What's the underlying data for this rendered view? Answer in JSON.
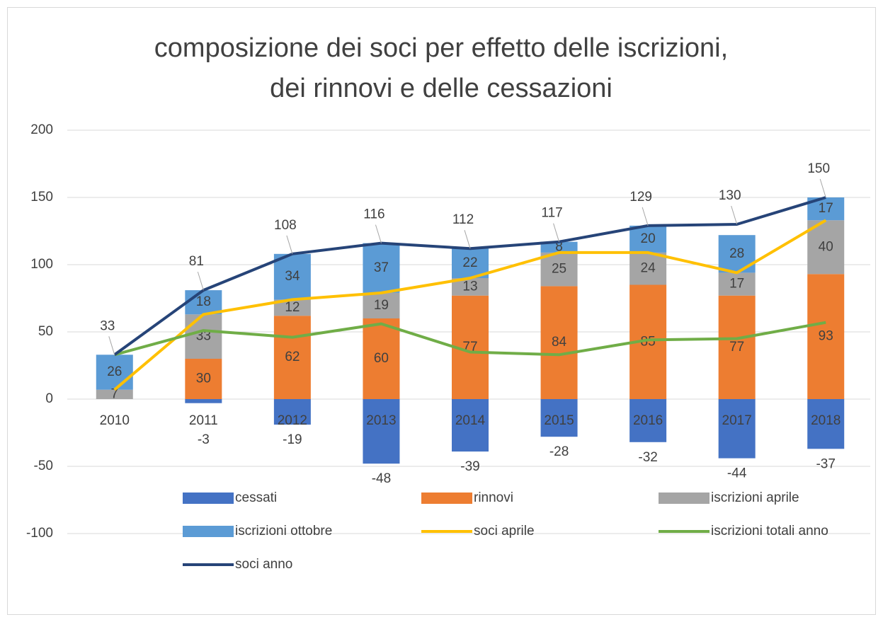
{
  "chart_data": {
    "type": "bar",
    "title": [
      "composizione dei soci per effetto delle iscrizioni,",
      "dei rinnovi e delle cessazioni"
    ],
    "categories": [
      "2010",
      "2011",
      "2012",
      "2013",
      "2014",
      "2015",
      "2016",
      "2017",
      "2018"
    ],
    "series": [
      {
        "name": "cessati",
        "type": "bar",
        "color": "#4472c4",
        "values": [
          null,
          -3,
          -19,
          -48,
          -39,
          -28,
          -32,
          -44,
          -37
        ]
      },
      {
        "name": "rinnovi",
        "type": "bar",
        "color": "#ed7d31",
        "values": [
          null,
          30,
          62,
          60,
          77,
          84,
          85,
          77,
          93
        ]
      },
      {
        "name": "iscrizioni aprile",
        "type": "bar",
        "color": "#a5a5a5",
        "values": [
          7,
          33,
          12,
          19,
          13,
          25,
          24,
          17,
          40
        ]
      },
      {
        "name": "iscrizioni ottobre",
        "type": "bar",
        "color": "#5b9bd5",
        "values": [
          26,
          18,
          34,
          37,
          22,
          8,
          20,
          28,
          17
        ]
      },
      {
        "name": "soci  aprile",
        "type": "line",
        "color": "#ffc000",
        "values": [
          7,
          63,
          74,
          79,
          90,
          109,
          109,
          94,
          133
        ]
      },
      {
        "name": "iscrizioni totali anno",
        "type": "line",
        "color": "#70ad47",
        "values": [
          33,
          51,
          46,
          56,
          35,
          33,
          44,
          45,
          57
        ]
      },
      {
        "name": "soci anno",
        "type": "line",
        "color": "#264478",
        "values": [
          33,
          81,
          108,
          116,
          112,
          117,
          129,
          130,
          150
        ],
        "labels": true
      }
    ],
    "ylim": [
      -100,
      200
    ],
    "yticks": [
      -100,
      -50,
      0,
      50,
      100,
      150,
      200
    ],
    "grid": true
  }
}
